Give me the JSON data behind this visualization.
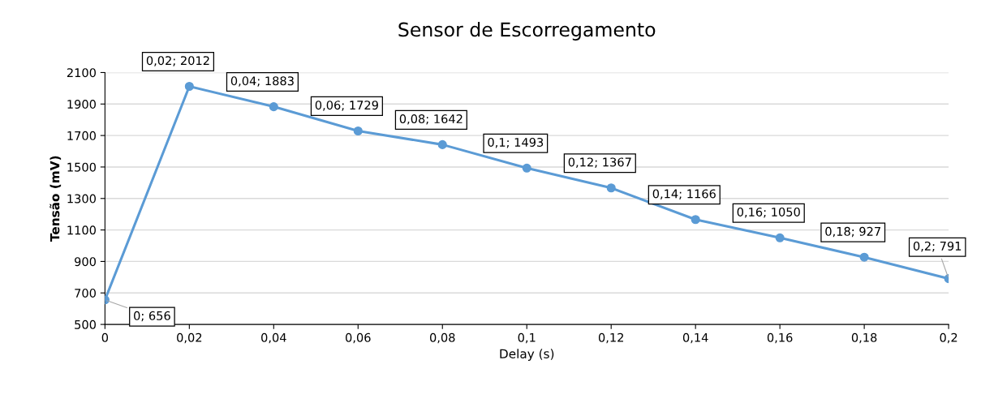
{
  "chart_data": {
    "type": "line",
    "title": "Sensor de Escorregamento",
    "xlabel": "Delay (s)",
    "ylabel": "Tensão (mV)",
    "x": [
      0,
      0.02,
      0.04,
      0.06,
      0.08,
      0.1,
      0.12,
      0.14,
      0.16,
      0.18,
      0.2
    ],
    "series": [
      {
        "color": "#5b9bd5",
        "values": [
          656,
          2012,
          1883,
          1729,
          1642,
          1493,
          1367,
          1166,
          1050,
          927,
          791
        ],
        "value_labels": [
          "0; 656",
          "0,02; 2012",
          "0,04; 1883",
          "0,06; 1729",
          "0,08; 1642",
          "0,1; 1493",
          "0,12; 1367",
          "0,14; 1166",
          "0,16; 1050",
          "0,18; 927",
          "0,2; 791"
        ]
      }
    ],
    "xlim": [
      0,
      0.2
    ],
    "xticks": [
      0,
      {
        "value": 0.02,
        "label": "0,02"
      },
      {
        "value": 0.04,
        "label": "0,04"
      },
      {
        "value": 0.06,
        "label": "0,06"
      },
      {
        "value": 0.08,
        "label": "0,08"
      },
      {
        "value": 0.1,
        "label": "0,1"
      },
      {
        "value": 0.12,
        "label": "0,12"
      },
      {
        "value": 0.14,
        "label": "0,14"
      },
      {
        "value": 0.16,
        "label": "0,16"
      },
      {
        "value": 0.18,
        "label": "0,18"
      },
      {
        "value": 0.2,
        "label": "0,2"
      }
    ],
    "ylim": [
      500,
      2100
    ],
    "yticks": [
      500,
      700,
      900,
      1100,
      1300,
      1500,
      1700,
      1900,
      2100
    ],
    "grid": "y",
    "marker": "circle",
    "line_style": "solid",
    "legend": false
  }
}
